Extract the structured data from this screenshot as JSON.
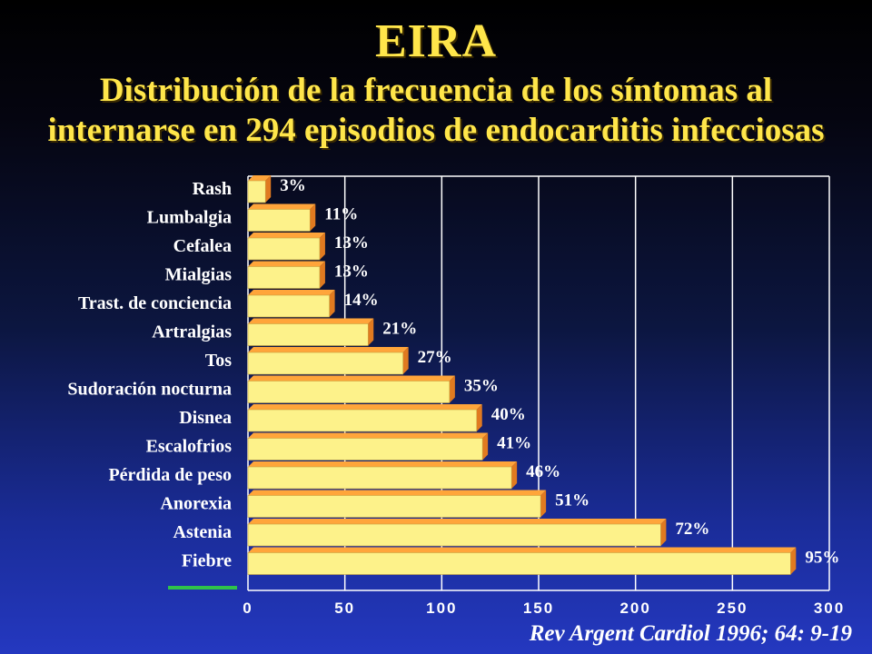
{
  "title": "EIRA",
  "subtitle": {
    "line1": "Distribución de la frecuencia de los síntomas al",
    "line2": "internarse en 294 episodios de endocarditis infecciosas"
  },
  "citation": "Rev Argent Cardiol 1996; 64: 9-19",
  "colors": {
    "title": "#ffe64a",
    "bar_face": "#fdf28a",
    "bar_top": "#ffa53a",
    "bar_side": "#e07a20",
    "text": "#ffffff",
    "underline": "#2fc34a"
  },
  "chart_data": {
    "type": "bar",
    "orientation": "horizontal",
    "title": "EIRA",
    "subtitle": "Distribución de la frecuencia de los síntomas al internarse en 294 episodios de endocarditis infecciosas",
    "categories": [
      "Rash",
      "Lumbalgia",
      "Cefalea",
      "Mialgias",
      "Trast. de conciencia",
      "Artralgias",
      "Tos",
      "Sudoración nocturna",
      "Disnea",
      "Escalofrios",
      "Pérdida de peso",
      "Anorexia",
      "Astenia",
      "Fiebre"
    ],
    "values": [
      9,
      32,
      37,
      37,
      42,
      62,
      80,
      104,
      118,
      121,
      136,
      151,
      213,
      280
    ],
    "labels": [
      "3%",
      "11%",
      "13%",
      "13%",
      "14%",
      "21%",
      "27%",
      "35%",
      "40%",
      "41%",
      "46%",
      "51%",
      "72%",
      "95%"
    ],
    "xlim": [
      0,
      300
    ],
    "xticks": [
      0,
      50,
      100,
      150,
      200,
      250,
      300
    ],
    "xlabel": "",
    "ylabel": "",
    "grid": "vertical",
    "legend": "none"
  }
}
